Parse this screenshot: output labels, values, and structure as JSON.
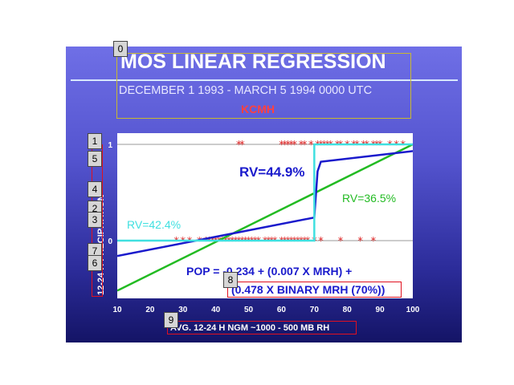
{
  "title": "MOS LINEAR REGRESSION",
  "subtitle": "DECEMBER 1 1993 - MARCH 5 1994   0000 UTC",
  "station": "KCMH",
  "markers": [
    "0",
    "1",
    "2",
    "3",
    "4",
    "5",
    "6",
    "7",
    "8",
    "9"
  ],
  "colors": {
    "linear": "#22bb22",
    "stepwise": "#1a1acc",
    "binary": "#40e0e0",
    "obs": "#dd2020",
    "box": "#e01020"
  },
  "chart_data": {
    "type": "scatter",
    "xlabel": "AVG. 12-24 H NGM ~1000 - 500 MB RH",
    "ylabel": "12-24 H PRECIPITATION",
    "xlim": [
      10,
      100
    ],
    "ylim": [
      -0.5,
      1.05
    ],
    "x_ticks": [
      10,
      20,
      30,
      40,
      50,
      60,
      70,
      80,
      90,
      100
    ],
    "y_ticks": [
      0,
      1
    ],
    "grid": true,
    "annotations": {
      "rv_linear": "RV=36.5%",
      "rv_binary": "RV=42.4%",
      "rv_stepwise": "RV=44.9%",
      "equation_line1": "POP = -0.234 + (0.007 X MRH) +",
      "equation_line2": "(0.478 X BINARY MRH (70%))"
    },
    "series": [
      {
        "type": "scatter",
        "values_x": [
          28,
          30,
          32,
          35,
          37,
          38,
          39,
          40,
          41,
          42,
          43,
          44,
          45,
          46,
          47,
          48,
          49,
          50,
          51,
          52,
          53,
          55,
          56,
          57,
          58,
          60,
          61,
          62,
          63,
          64,
          65,
          66,
          67,
          68,
          70,
          72,
          78,
          84,
          88
        ],
        "values_y": [
          0,
          0,
          0,
          0,
          0,
          0,
          0,
          0,
          0,
          0,
          0,
          0,
          0,
          0,
          0,
          0,
          0,
          0,
          0,
          0,
          0,
          0,
          0,
          0,
          0,
          0,
          0,
          0,
          0,
          0,
          0,
          0,
          0,
          0,
          0,
          0,
          0,
          0,
          0
        ]
      },
      {
        "type": "scatter",
        "values_x": [
          47,
          48,
          60,
          61,
          62,
          63,
          64,
          66,
          67,
          69,
          71,
          72,
          73,
          74,
          75,
          77,
          78,
          80,
          82,
          83,
          85,
          86,
          88,
          89,
          90,
          93,
          95,
          97
        ],
        "values_y": [
          1,
          1,
          1,
          1,
          1,
          1,
          1,
          1,
          1,
          1,
          1,
          1,
          1,
          1,
          1,
          1,
          1,
          1,
          1,
          1,
          1,
          1,
          1,
          1,
          1,
          1,
          1,
          1
        ]
      },
      {
        "type": "line",
        "x": [
          10,
          100
        ],
        "y": [
          -0.52,
          1.0
        ]
      },
      {
        "type": "line",
        "x": [
          10,
          70,
          71,
          72,
          100
        ],
        "y": [
          -0.16,
          0.24,
          0.72,
          0.82,
          0.93
        ]
      },
      {
        "type": "line",
        "x": [
          10,
          70,
          70,
          100
        ],
        "y": [
          0,
          0,
          1,
          1
        ]
      }
    ]
  }
}
